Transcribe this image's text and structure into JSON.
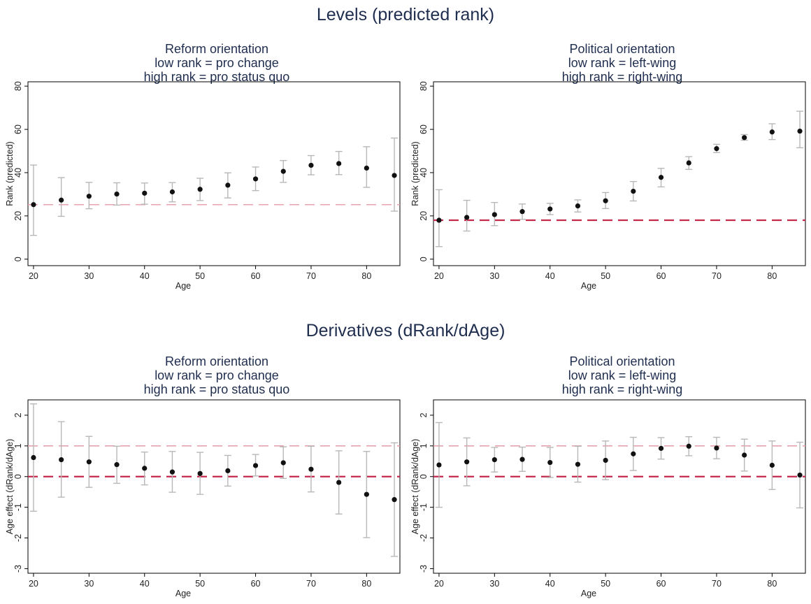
{
  "levels_title": "Levels (predicted rank)",
  "derivatives_title": "Derivatives (dRank/dAge)",
  "chart_data": [
    {
      "type": "scatter",
      "panel": "levels-reform",
      "title_lines": [
        "Reform orientation",
        "low rank = pro change",
        "high rank = pro status quo"
      ],
      "xlabel": "Age",
      "ylabel": "Rank (predicted)",
      "xlim": [
        19,
        86
      ],
      "ylim": [
        -3,
        82
      ],
      "xticks": [
        20,
        30,
        40,
        50,
        60,
        70,
        80
      ],
      "yticks": [
        0,
        20,
        40,
        60,
        80
      ],
      "reference_lines": [
        25.2
      ],
      "x": [
        20,
        25,
        30,
        35,
        40,
        45,
        50,
        55,
        60,
        65,
        70,
        75,
        80,
        85
      ],
      "y": [
        25.2,
        27.3,
        29.1,
        30.1,
        30.5,
        31.1,
        32.3,
        34.2,
        37.1,
        40.6,
        43.4,
        44.2,
        42.1,
        38.7
      ],
      "ci_low": [
        11.0,
        19.8,
        23.3,
        25.0,
        25.4,
        26.5,
        27.1,
        28.3,
        31.7,
        35.5,
        39.0,
        39.1,
        33.2,
        22.2
      ],
      "ci_high": [
        43.5,
        37.7,
        35.5,
        35.3,
        35.2,
        35.4,
        37.4,
        39.9,
        42.6,
        45.6,
        47.9,
        49.8,
        52.0,
        56.0
      ]
    },
    {
      "type": "scatter",
      "panel": "levels-political",
      "title_lines": [
        "Political orientation",
        "low rank = left-wing",
        "high rank = right-wing"
      ],
      "xlabel": "Age",
      "ylabel": "Rank (predicted)",
      "xlim": [
        19,
        86
      ],
      "ylim": [
        -3,
        82
      ],
      "xticks": [
        20,
        30,
        40,
        50,
        60,
        70,
        80
      ],
      "yticks": [
        0,
        20,
        40,
        60,
        80
      ],
      "reference_lines": [
        18
      ],
      "x": [
        20,
        25,
        30,
        35,
        40,
        45,
        50,
        55,
        60,
        65,
        70,
        75,
        80,
        85
      ],
      "y": [
        18.0,
        19.3,
        20.6,
        22.0,
        23.2,
        24.6,
        27.0,
        31.4,
        37.8,
        44.5,
        51.1,
        56.2,
        58.8,
        59.2
      ],
      "ci_low": [
        5.8,
        13.0,
        15.5,
        18.4,
        20.6,
        21.8,
        23.4,
        26.9,
        33.4,
        41.5,
        49.3,
        55.0,
        55.3,
        51.5
      ],
      "ci_high": [
        32.1,
        27.2,
        26.2,
        25.5,
        25.8,
        27.4,
        30.8,
        35.9,
        42.0,
        47.4,
        53.1,
        57.6,
        62.6,
        68.4
      ]
    },
    {
      "type": "scatter",
      "panel": "derivatives-reform",
      "title_lines": [
        "Reform orientation",
        "low rank = pro change",
        "high rank = pro status quo"
      ],
      "xlabel": "Age",
      "ylabel": "Age effect (dRank/dAge)",
      "xlim": [
        19,
        86
      ],
      "ylim": [
        -3.15,
        2.5
      ],
      "xticks": [
        20,
        30,
        40,
        50,
        60,
        70,
        80
      ],
      "yticks": [
        -3,
        -2,
        -1,
        0,
        1,
        2
      ],
      "reference_lines": [
        0,
        1
      ],
      "x": [
        20,
        25,
        30,
        35,
        40,
        45,
        50,
        55,
        60,
        65,
        70,
        75,
        80,
        85
      ],
      "y": [
        0.62,
        0.55,
        0.48,
        0.39,
        0.27,
        0.15,
        0.1,
        0.19,
        0.36,
        0.45,
        0.24,
        -0.19,
        -0.58,
        -0.75
      ],
      "ci_low": [
        -1.13,
        -0.67,
        -0.35,
        -0.22,
        -0.27,
        -0.51,
        -0.58,
        -0.31,
        0.02,
        -0.06,
        -0.5,
        -1.22,
        -1.99,
        -2.6
      ],
      "ci_high": [
        2.37,
        1.79,
        1.31,
        0.99,
        0.8,
        0.82,
        0.79,
        0.69,
        0.72,
        0.97,
        0.99,
        0.84,
        0.82,
        1.1
      ]
    },
    {
      "type": "scatter",
      "panel": "derivatives-political",
      "title_lines": [
        "Political orientation",
        "low rank = left-wing",
        "high rank = right-wing"
      ],
      "xlabel": "Age",
      "ylabel": "Age effect (dRank/dAge)",
      "xlim": [
        19,
        86
      ],
      "ylim": [
        -3.15,
        2.5
      ],
      "xticks": [
        20,
        30,
        40,
        50,
        60,
        70,
        80
      ],
      "yticks": [
        -3,
        -2,
        -1,
        0,
        1,
        2
      ],
      "reference_lines": [
        0,
        1
      ],
      "x": [
        20,
        25,
        30,
        35,
        40,
        45,
        50,
        55,
        60,
        65,
        70,
        75,
        80,
        85
      ],
      "y": [
        0.38,
        0.48,
        0.55,
        0.56,
        0.46,
        0.4,
        0.53,
        0.74,
        0.92,
        0.99,
        0.93,
        0.7,
        0.37,
        0.05
      ],
      "ci_low": [
        -1.0,
        -0.3,
        0.15,
        0.17,
        -0.03,
        -0.18,
        -0.1,
        0.2,
        0.57,
        0.68,
        0.58,
        0.18,
        -0.42,
        -1.02
      ],
      "ci_high": [
        1.76,
        1.26,
        0.95,
        0.96,
        0.95,
        0.99,
        1.16,
        1.28,
        1.27,
        1.3,
        1.28,
        1.22,
        1.16,
        1.12
      ]
    }
  ],
  "colors": {
    "title": "#1f2d4e",
    "point": "#111111",
    "ci": "#b8b8b8",
    "ref_light": "#e7a3ad",
    "ref_dark": "#c32a4b"
  }
}
